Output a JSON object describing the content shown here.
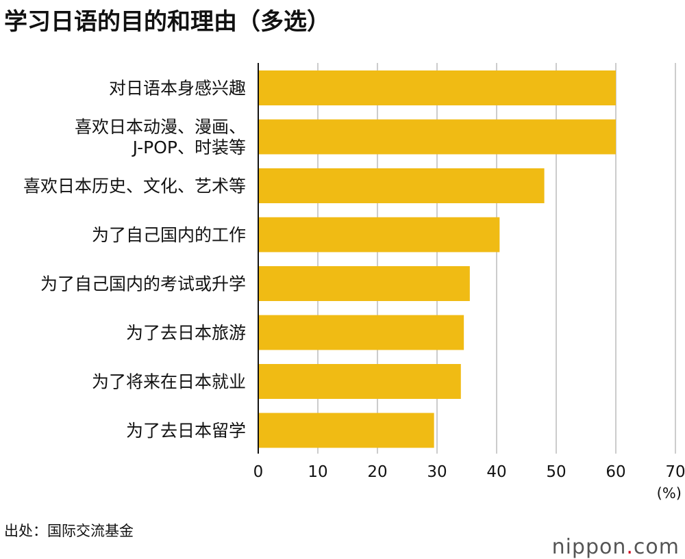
{
  "title": "学习日语的目的和理由（多选）",
  "source": "出处：国际交流基金",
  "logo": {
    "name": "nippon",
    "dot": ".",
    "tld": "com"
  },
  "colors": {
    "bar": "#f0bb14",
    "grid": "#cccccc",
    "axis": "#111111"
  },
  "chart_data": {
    "type": "bar",
    "orientation": "horizontal",
    "categories": [
      [
        "对日语本身感兴趣"
      ],
      [
        "喜欢日本动漫、漫画、",
        "J-POP、时装等"
      ],
      [
        "喜欢日本历史、文化、艺术等"
      ],
      [
        "为了自己国内的工作"
      ],
      [
        "为了自己国内的考试或升学"
      ],
      [
        "为了去日本旅游"
      ],
      [
        "为了将来在日本就业"
      ],
      [
        "为了去日本留学"
      ]
    ],
    "values": [
      60.0,
      60.0,
      48.0,
      40.5,
      35.5,
      34.5,
      34.0,
      29.5
    ],
    "xlim": [
      0,
      70
    ],
    "xticks": [
      0,
      10,
      20,
      30,
      40,
      50,
      60,
      70
    ],
    "xunit": "(%)",
    "grid": true
  }
}
